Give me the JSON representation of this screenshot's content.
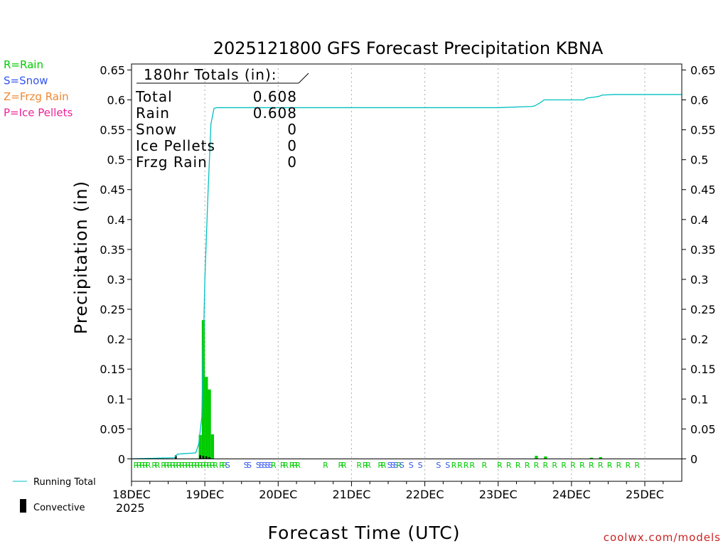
{
  "chart_data": {
    "type": "bar",
    "title": "2025121800 GFS Forecast Precipitation KBNA",
    "xlabel": "Forecast Time (UTC)",
    "ylabel": "Precipitation (in)",
    "ylim": [
      -0.0375,
      0.66
    ],
    "xlim": [
      0,
      180
    ],
    "y_ticks": [
      "0",
      "0.05",
      "0.1",
      "0.15",
      "0.2",
      "0.25",
      "0.3",
      "0.35",
      "0.4",
      "0.45",
      "0.5",
      "0.55",
      "0.6",
      "0.65"
    ],
    "y_tick_values": [
      0,
      0.05,
      0.1,
      0.15,
      0.2,
      0.25,
      0.3,
      0.35,
      0.4,
      0.45,
      0.5,
      0.55,
      0.6,
      0.65
    ],
    "x_ticks": [
      {
        "label": "18DEC",
        "hour": 0
      },
      {
        "label": "19DEC",
        "hour": 24
      },
      {
        "label": "20DEC",
        "hour": 48
      },
      {
        "label": "21DEC",
        "hour": 72
      },
      {
        "label": "22DEC",
        "hour": 96
      },
      {
        "label": "23DEC",
        "hour": 120
      },
      {
        "label": "24DEC",
        "hour": 144
      },
      {
        "label": "25DEC",
        "hour": 168
      }
    ],
    "year_label": "2025",
    "series": [
      {
        "name": "Rain",
        "color": "#00cc00",
        "bar_width_hours": 1,
        "bars": [
          {
            "hour": 22.5,
            "value": 0.04
          },
          {
            "hour": 23.5,
            "value": 0.232
          },
          {
            "hour": 24.5,
            "value": 0.137
          },
          {
            "hour": 25.5,
            "value": 0.116
          },
          {
            "hour": 26.5,
            "value": 0.041
          },
          {
            "hour": 132.5,
            "value": 0.005
          },
          {
            "hour": 135.5,
            "value": 0.004
          },
          {
            "hour": 150.5,
            "value": 0.002
          },
          {
            "hour": 153.5,
            "value": 0.003
          }
        ]
      },
      {
        "name": "Convective",
        "color": "#000000",
        "bar_width_hours": 0.6,
        "bars": [
          {
            "hour": 14.5,
            "value": 0.006
          },
          {
            "hour": 22.5,
            "value": 0.006
          },
          {
            "hour": 23.5,
            "value": 0.005
          },
          {
            "hour": 24.5,
            "value": 0.004
          },
          {
            "hour": 25.5,
            "value": 0.003
          }
        ]
      },
      {
        "name": "Running Total",
        "color": "#00c0c0",
        "type": "line",
        "points": [
          [
            0,
            0
          ],
          [
            14,
            0.002
          ],
          [
            15,
            0.008
          ],
          [
            21,
            0.01
          ],
          [
            22,
            0.025
          ],
          [
            23,
            0.07
          ],
          [
            24,
            0.3
          ],
          [
            25,
            0.44
          ],
          [
            26,
            0.56
          ],
          [
            27,
            0.586
          ],
          [
            28,
            0.587
          ],
          [
            120,
            0.587
          ],
          [
            131,
            0.589
          ],
          [
            132,
            0.59
          ],
          [
            134,
            0.596
          ],
          [
            135,
            0.6
          ],
          [
            148,
            0.6
          ],
          [
            149,
            0.603
          ],
          [
            152,
            0.605
          ],
          [
            153,
            0.606
          ],
          [
            154,
            0.608
          ],
          [
            158,
            0.609
          ],
          [
            180,
            0.609
          ]
        ]
      }
    ],
    "ptype_strip": [
      {
        "hour": 1.5,
        "t": "R"
      },
      {
        "hour": 2.5,
        "t": "R"
      },
      {
        "hour": 3.5,
        "t": "R"
      },
      {
        "hour": 4.5,
        "t": "R"
      },
      {
        "hour": 5.5,
        "t": "R"
      },
      {
        "hour": 7.5,
        "t": "R"
      },
      {
        "hour": 8.5,
        "t": "R"
      },
      {
        "hour": 10.5,
        "t": "R"
      },
      {
        "hour": 11.5,
        "t": "R"
      },
      {
        "hour": 12.5,
        "t": "R"
      },
      {
        "hour": 13.5,
        "t": "R"
      },
      {
        "hour": 14.5,
        "t": "R"
      },
      {
        "hour": 15.5,
        "t": "R"
      },
      {
        "hour": 16.5,
        "t": "R"
      },
      {
        "hour": 17.5,
        "t": "R"
      },
      {
        "hour": 18.5,
        "t": "R"
      },
      {
        "hour": 19.5,
        "t": "R"
      },
      {
        "hour": 20.5,
        "t": "R"
      },
      {
        "hour": 21.5,
        "t": "R"
      },
      {
        "hour": 22.5,
        "t": "R"
      },
      {
        "hour": 23.5,
        "t": "R"
      },
      {
        "hour": 24.5,
        "t": "R"
      },
      {
        "hour": 25.5,
        "t": "R"
      },
      {
        "hour": 26.5,
        "t": "R"
      },
      {
        "hour": 27.5,
        "t": "R"
      },
      {
        "hour": 29.5,
        "t": "R"
      },
      {
        "hour": 30.5,
        "t": "R"
      },
      {
        "hour": 31.5,
        "t": "S"
      },
      {
        "hour": 37.5,
        "t": "S"
      },
      {
        "hour": 38.5,
        "t": "S"
      },
      {
        "hour": 41.5,
        "t": "S"
      },
      {
        "hour": 42.5,
        "t": "S"
      },
      {
        "hour": 43.5,
        "t": "S"
      },
      {
        "hour": 44.5,
        "t": "S"
      },
      {
        "hour": 45.5,
        "t": "S"
      },
      {
        "hour": 46.5,
        "t": "R"
      },
      {
        "hour": 49.5,
        "t": "R"
      },
      {
        "hour": 50.5,
        "t": "R"
      },
      {
        "hour": 52.5,
        "t": "R"
      },
      {
        "hour": 53.5,
        "t": "R"
      },
      {
        "hour": 54.5,
        "t": "R"
      },
      {
        "hour": 63.5,
        "t": "R"
      },
      {
        "hour": 68.5,
        "t": "R"
      },
      {
        "hour": 69.5,
        "t": "R"
      },
      {
        "hour": 74.5,
        "t": "R"
      },
      {
        "hour": 76.5,
        "t": "R"
      },
      {
        "hour": 77.5,
        "t": "R"
      },
      {
        "hour": 81.5,
        "t": "R"
      },
      {
        "hour": 82.5,
        "t": "R"
      },
      {
        "hour": 84.5,
        "t": "S"
      },
      {
        "hour": 85.5,
        "t": "S"
      },
      {
        "hour": 86.5,
        "t": "S"
      },
      {
        "hour": 87.5,
        "t": "R"
      },
      {
        "hour": 88.5,
        "t": "S"
      },
      {
        "hour": 91.5,
        "t": "S"
      },
      {
        "hour": 94.5,
        "t": "S"
      },
      {
        "hour": 100.5,
        "t": "S"
      },
      {
        "hour": 103.5,
        "t": "S"
      },
      {
        "hour": 105.5,
        "t": "R"
      },
      {
        "hour": 107.5,
        "t": "R"
      },
      {
        "hour": 109.5,
        "t": "R"
      },
      {
        "hour": 111.5,
        "t": "R"
      },
      {
        "hour": 115.5,
        "t": "R"
      },
      {
        "hour": 120.5,
        "t": "R"
      },
      {
        "hour": 123.5,
        "t": "R"
      },
      {
        "hour": 126.5,
        "t": "R"
      },
      {
        "hour": 129.5,
        "t": "R"
      },
      {
        "hour": 132.5,
        "t": "R"
      },
      {
        "hour": 135.5,
        "t": "R"
      },
      {
        "hour": 138.5,
        "t": "R"
      },
      {
        "hour": 141.5,
        "t": "R"
      },
      {
        "hour": 144.5,
        "t": "R"
      },
      {
        "hour": 147.5,
        "t": "R"
      },
      {
        "hour": 150.5,
        "t": "R"
      },
      {
        "hour": 153.5,
        "t": "R"
      },
      {
        "hour": 156.5,
        "t": "R"
      },
      {
        "hour": 159.5,
        "t": "R"
      },
      {
        "hour": 162.5,
        "t": "R"
      },
      {
        "hour": 165.5,
        "t": "R"
      }
    ]
  },
  "totals": {
    "heading": "180hr Totals (in):",
    "rows": [
      {
        "label": "Total",
        "value": "0.608"
      },
      {
        "label": "Rain",
        "value": "0.608"
      },
      {
        "label": "Snow",
        "value": "0"
      },
      {
        "label": "Ice Pellets",
        "value": "0"
      },
      {
        "label": "Frzg Rain",
        "value": "0"
      }
    ]
  },
  "ptype_legend": [
    {
      "text": "R=Rain",
      "color": "#00cc00"
    },
    {
      "text": "S=Snow",
      "color": "#3355ee"
    },
    {
      "text": "Z=Frzg Rain",
      "color": "#ee8833"
    },
    {
      "text": "P=Ice Pellets",
      "color": "#ee2299"
    }
  ],
  "series_legend": {
    "running_total": "Running Total",
    "convective": "Convective"
  },
  "colors": {
    "rain": "#00cc00",
    "snow": "#3355ee",
    "running_total": "#00c0c0",
    "convective": "#000000",
    "grid": "#aaaaaa",
    "credit": "#cc2222"
  },
  "credit": "coolwx.com/models"
}
